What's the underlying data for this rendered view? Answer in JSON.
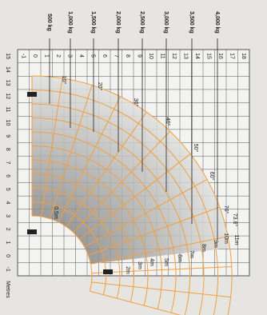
{
  "load_labels": [
    "500 kg",
    "1,000 kg",
    "1,500 kg",
    "2,000 kg",
    "2,500 kg",
    "3,000 kg",
    "3,500 kg",
    "4,000 kg"
  ],
  "reach_scale": [
    -1,
    0,
    1,
    2,
    3,
    4,
    5,
    6,
    7,
    8,
    9,
    10,
    11,
    12,
    13,
    14,
    15,
    16,
    17,
    18
  ],
  "height_scale": [
    15,
    14,
    13,
    12,
    11,
    10,
    9,
    8,
    7,
    6,
    5,
    4,
    3,
    2,
    1,
    0,
    -1
  ],
  "angles": [
    "10°",
    "20°",
    "30°",
    "40°",
    "50°",
    "60°",
    "70°",
    "73.6°"
  ],
  "extensions": [
    "0.5m",
    "2m",
    "3m",
    "4m",
    "5m",
    "6m",
    "7m",
    "8m",
    "9m",
    "10m",
    "11m"
  ],
  "unit": "Metres"
}
